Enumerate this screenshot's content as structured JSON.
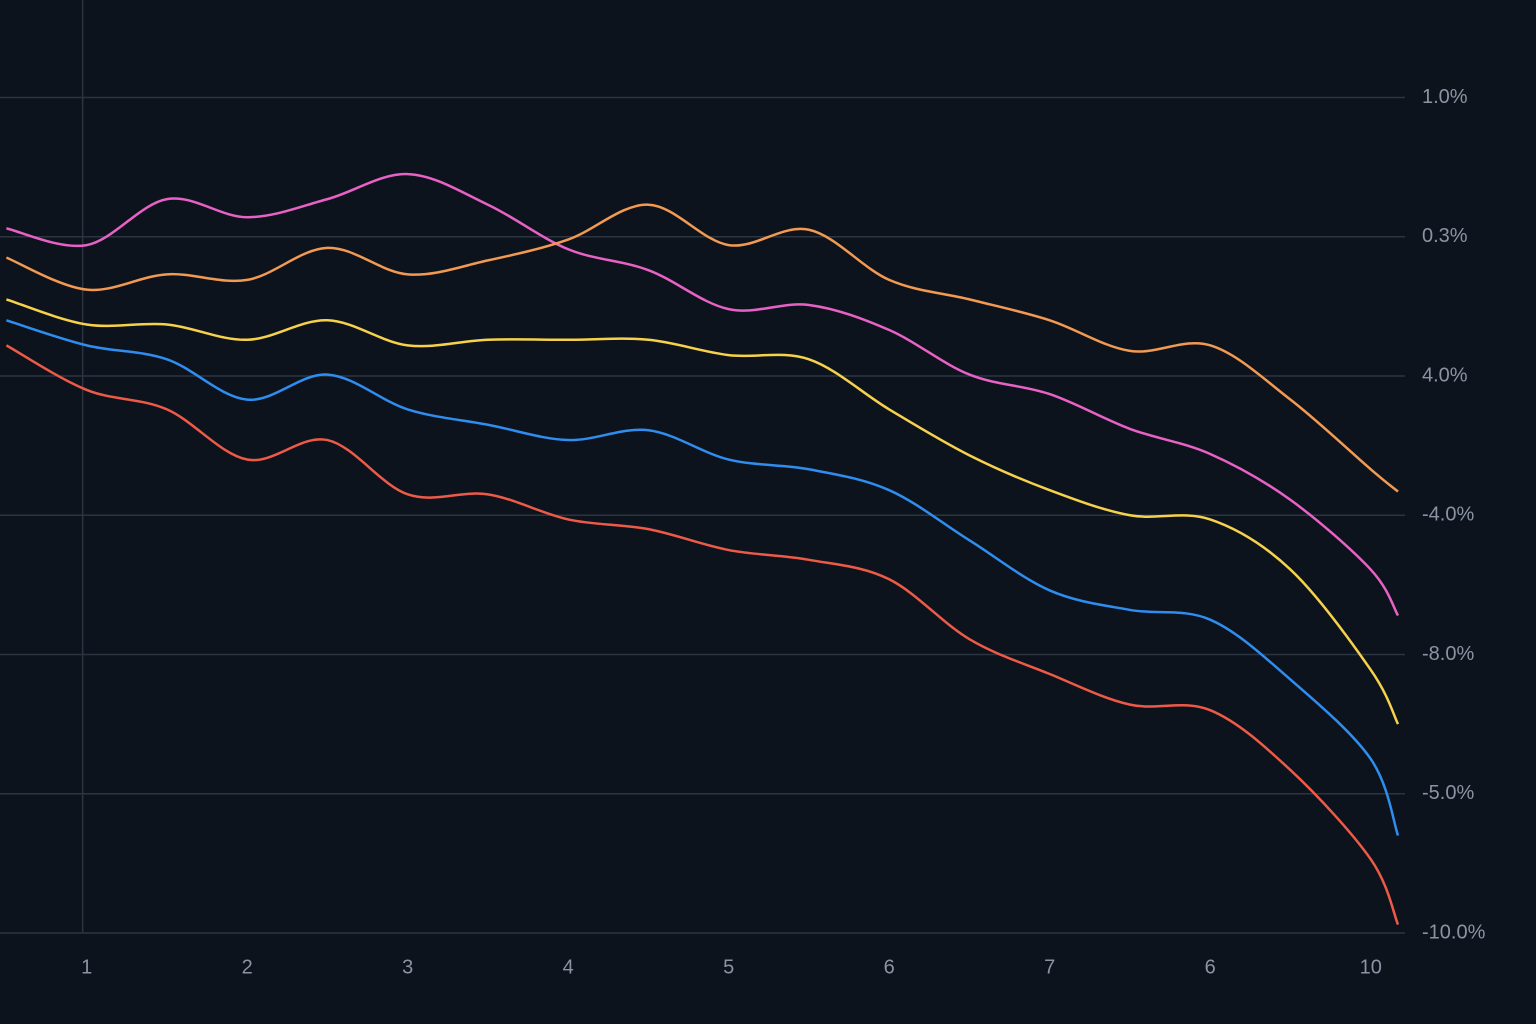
{
  "chart_data": {
    "type": "line",
    "x": [
      0.5,
      1,
      1.5,
      2,
      2.5,
      3,
      3.5,
      4,
      4.5,
      5,
      5.5,
      6,
      6.5,
      7,
      7.5,
      8,
      8.5,
      9,
      9.17
    ],
    "series": [
      {
        "color": "#e862c6",
        "values": [
          5.06,
          4.94,
          5.27,
          5.14,
          5.27,
          5.45,
          5.23,
          4.91,
          4.76,
          4.48,
          4.51,
          4.33,
          4.01,
          3.87,
          3.62,
          3.44,
          3.11,
          2.61,
          2.28
        ]
      },
      {
        "color": "#f39a52",
        "values": [
          4.85,
          4.62,
          4.73,
          4.69,
          4.92,
          4.73,
          4.83,
          4.98,
          5.23,
          4.94,
          5.05,
          4.69,
          4.55,
          4.4,
          4.18,
          4.22,
          3.83,
          3.33,
          3.17
        ]
      },
      {
        "color": "#f6d24c",
        "values": [
          4.55,
          4.37,
          4.37,
          4.26,
          4.4,
          4.22,
          4.26,
          4.26,
          4.26,
          4.15,
          4.12,
          3.76,
          3.43,
          3.18,
          3.0,
          2.97,
          2.61,
          1.89,
          1.5
        ]
      },
      {
        "color": "#2f8df0",
        "values": [
          4.4,
          4.22,
          4.12,
          3.83,
          4.01,
          3.76,
          3.65,
          3.54,
          3.61,
          3.4,
          3.33,
          3.18,
          2.82,
          2.46,
          2.32,
          2.25,
          1.82,
          1.25,
          0.7
        ]
      },
      {
        "color": "#ee5a48",
        "values": [
          4.22,
          3.9,
          3.76,
          3.4,
          3.54,
          3.15,
          3.15,
          2.97,
          2.9,
          2.75,
          2.68,
          2.54,
          2.11,
          1.86,
          1.64,
          1.6,
          1.17,
          0.53,
          0.06
        ]
      }
    ],
    "xlim": [
      0.46,
      9.17
    ],
    "ylim": [
      0,
      6.7
    ],
    "xticks": [
      {
        "value": 1,
        "label": "1"
      },
      {
        "value": 2,
        "label": "2"
      },
      {
        "value": 3,
        "label": "3"
      },
      {
        "value": 4,
        "label": "4"
      },
      {
        "value": 5,
        "label": "5"
      },
      {
        "value": 6,
        "label": "6"
      },
      {
        "value": 7,
        "label": "7"
      },
      {
        "value": 8,
        "label": "6"
      },
      {
        "value": 9,
        "label": "10"
      }
    ],
    "yticks": [
      {
        "value": 6,
        "label": "1.0%"
      },
      {
        "value": 5,
        "label": "0.3%"
      },
      {
        "value": 4,
        "label": "4.0%"
      },
      {
        "value": 3,
        "label": "-4.0%"
      },
      {
        "value": 2,
        "label": "-8.0%"
      },
      {
        "value": 1,
        "label": "-5.0%"
      },
      {
        "value": 0,
        "label": "-10.0%"
      }
    ],
    "grid": true
  }
}
